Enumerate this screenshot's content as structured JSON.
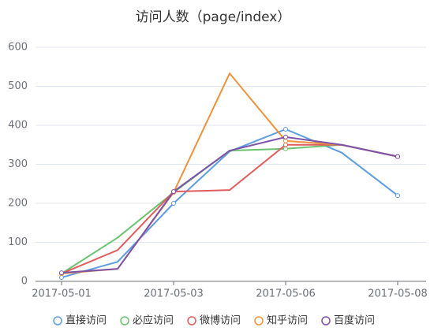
{
  "chart_data": {
    "type": "line",
    "title": "访问人数（page/index）",
    "categories": [
      "2017-05-01",
      null,
      "2017-05-03",
      null,
      "2017-05-06",
      null,
      "2017-05-08"
    ],
    "series": [
      {
        "name": "直接访问",
        "color": "#5e9ddf",
        "values": [
          10,
          50,
          200,
          333,
          390,
          330,
          220
        ]
      },
      {
        "name": "必应访问",
        "color": "#6cc36f",
        "values": [
          20,
          112,
          228,
          335,
          340,
          350,
          320
        ]
      },
      {
        "name": "微博访问",
        "color": "#e05c5c",
        "values": [
          20,
          80,
          230,
          234,
          350,
          350,
          320
        ]
      },
      {
        "name": "知乎访问",
        "color": "#f0913c",
        "values": [
          20,
          32,
          228,
          533,
          360,
          350,
          320
        ]
      },
      {
        "name": "百度访问",
        "color": "#7d52a9",
        "values": [
          22,
          32,
          230,
          335,
          370,
          350,
          320
        ]
      }
    ],
    "ylim": [
      0,
      600
    ],
    "yticks": [
      0,
      100,
      200,
      300,
      400,
      500,
      600
    ],
    "grid": true,
    "legend": "bottom"
  }
}
